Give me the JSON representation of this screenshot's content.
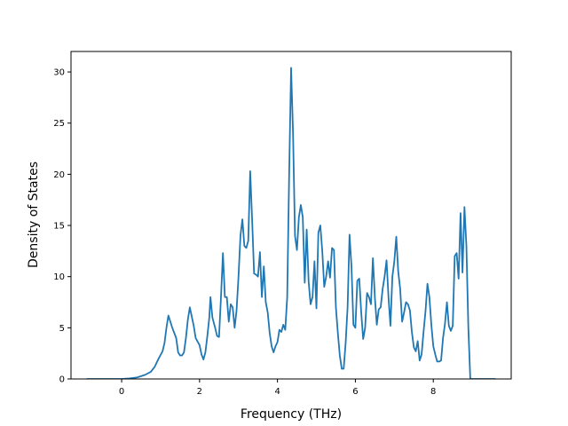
{
  "chart_data": {
    "type": "line",
    "title": "",
    "xlabel": "Frequency (THz)",
    "ylabel": "Density of States",
    "xlim": [
      -1.3,
      10.0
    ],
    "ylim": [
      0,
      32
    ],
    "xticks": [
      0,
      2,
      4,
      6,
      8
    ],
    "yticks": [
      0,
      5,
      10,
      15,
      20,
      25,
      30
    ],
    "grid": false,
    "legend": "none",
    "series": [
      {
        "color": "#1f77b4",
        "points": [
          [
            -0.9,
            0
          ],
          [
            -0.5,
            0
          ],
          [
            0,
            0
          ],
          [
            0.2,
            0.05
          ],
          [
            0.4,
            0.15
          ],
          [
            0.6,
            0.4
          ],
          [
            0.75,
            0.7
          ],
          [
            0.85,
            1.2
          ],
          [
            0.95,
            2.0
          ],
          [
            1.05,
            2.7
          ],
          [
            1.1,
            3.5
          ],
          [
            1.15,
            5.0
          ],
          [
            1.2,
            6.2
          ],
          [
            1.3,
            5.0
          ],
          [
            1.4,
            4.0
          ],
          [
            1.45,
            2.6
          ],
          [
            1.5,
            2.3
          ],
          [
            1.55,
            2.3
          ],
          [
            1.6,
            2.6
          ],
          [
            1.65,
            4.0
          ],
          [
            1.7,
            5.8
          ],
          [
            1.75,
            7.0
          ],
          [
            1.85,
            5.2
          ],
          [
            1.9,
            4.0
          ],
          [
            2.0,
            3.3
          ],
          [
            2.05,
            2.4
          ],
          [
            2.1,
            1.9
          ],
          [
            2.15,
            2.6
          ],
          [
            2.2,
            4.2
          ],
          [
            2.25,
            6.0
          ],
          [
            2.28,
            8.0
          ],
          [
            2.33,
            6.0
          ],
          [
            2.4,
            5.0
          ],
          [
            2.45,
            4.2
          ],
          [
            2.5,
            4.1
          ],
          [
            2.55,
            8.0
          ],
          [
            2.6,
            12.3
          ],
          [
            2.65,
            8.0
          ],
          [
            2.7,
            8.0
          ],
          [
            2.75,
            5.6
          ],
          [
            2.8,
            7.3
          ],
          [
            2.85,
            7.0
          ],
          [
            2.9,
            5.0
          ],
          [
            2.95,
            6.7
          ],
          [
            3.0,
            10.0
          ],
          [
            3.05,
            14.0
          ],
          [
            3.1,
            15.6
          ],
          [
            3.15,
            13.0
          ],
          [
            3.2,
            12.8
          ],
          [
            3.25,
            13.5
          ],
          [
            3.3,
            20.3
          ],
          [
            3.35,
            15.5
          ],
          [
            3.4,
            10.3
          ],
          [
            3.45,
            10.2
          ],
          [
            3.5,
            10.0
          ],
          [
            3.55,
            12.4
          ],
          [
            3.6,
            8.0
          ],
          [
            3.65,
            11.0
          ],
          [
            3.7,
            7.5
          ],
          [
            3.75,
            6.5
          ],
          [
            3.8,
            4.5
          ],
          [
            3.85,
            3.2
          ],
          [
            3.9,
            2.6
          ],
          [
            3.95,
            3.2
          ],
          [
            4.0,
            3.6
          ],
          [
            4.05,
            4.8
          ],
          [
            4.1,
            4.6
          ],
          [
            4.15,
            5.3
          ],
          [
            4.2,
            4.8
          ],
          [
            4.25,
            8.0
          ],
          [
            4.3,
            20.0
          ],
          [
            4.35,
            30.4
          ],
          [
            4.4,
            24.0
          ],
          [
            4.45,
            14.0
          ],
          [
            4.5,
            12.6
          ],
          [
            4.55,
            15.8
          ],
          [
            4.6,
            17.0
          ],
          [
            4.65,
            15.8
          ],
          [
            4.7,
            9.4
          ],
          [
            4.75,
            14.6
          ],
          [
            4.8,
            9.5
          ],
          [
            4.85,
            7.3
          ],
          [
            4.9,
            8.0
          ],
          [
            4.95,
            11.5
          ],
          [
            5.0,
            6.9
          ],
          [
            5.05,
            14.3
          ],
          [
            5.1,
            15.0
          ],
          [
            5.15,
            12.5
          ],
          [
            5.2,
            9.0
          ],
          [
            5.25,
            10.0
          ],
          [
            5.3,
            11.5
          ],
          [
            5.35,
            9.9
          ],
          [
            5.4,
            12.8
          ],
          [
            5.45,
            12.6
          ],
          [
            5.5,
            7.0
          ],
          [
            5.55,
            4.5
          ],
          [
            5.6,
            2.3
          ],
          [
            5.65,
            1.0
          ],
          [
            5.7,
            1.0
          ],
          [
            5.75,
            3.5
          ],
          [
            5.8,
            7.0
          ],
          [
            5.85,
            14.1
          ],
          [
            5.9,
            11.0
          ],
          [
            5.95,
            5.3
          ],
          [
            6.0,
            5.0
          ],
          [
            6.05,
            9.6
          ],
          [
            6.1,
            9.8
          ],
          [
            6.15,
            6.5
          ],
          [
            6.2,
            3.9
          ],
          [
            6.25,
            5.0
          ],
          [
            6.3,
            8.4
          ],
          [
            6.35,
            8.0
          ],
          [
            6.4,
            7.3
          ],
          [
            6.45,
            11.8
          ],
          [
            6.5,
            8.0
          ],
          [
            6.55,
            5.3
          ],
          [
            6.6,
            6.8
          ],
          [
            6.65,
            7.0
          ],
          [
            6.7,
            8.8
          ],
          [
            6.75,
            10.0
          ],
          [
            6.8,
            11.6
          ],
          [
            6.85,
            8.0
          ],
          [
            6.9,
            5.2
          ],
          [
            6.95,
            10.0
          ],
          [
            7.0,
            11.5
          ],
          [
            7.05,
            13.9
          ],
          [
            7.1,
            10.5
          ],
          [
            7.15,
            8.8
          ],
          [
            7.2,
            5.6
          ],
          [
            7.25,
            6.5
          ],
          [
            7.3,
            7.5
          ],
          [
            7.35,
            7.3
          ],
          [
            7.4,
            6.7
          ],
          [
            7.45,
            4.6
          ],
          [
            7.5,
            3.1
          ],
          [
            7.55,
            2.7
          ],
          [
            7.6,
            3.7
          ],
          [
            7.65,
            1.8
          ],
          [
            7.7,
            2.4
          ],
          [
            7.75,
            4.6
          ],
          [
            7.8,
            6.6
          ],
          [
            7.85,
            9.3
          ],
          [
            7.9,
            8.0
          ],
          [
            7.95,
            5.3
          ],
          [
            8.0,
            3.2
          ],
          [
            8.05,
            2.4
          ],
          [
            8.1,
            1.7
          ],
          [
            8.15,
            1.7
          ],
          [
            8.2,
            1.8
          ],
          [
            8.25,
            4.0
          ],
          [
            8.3,
            5.4
          ],
          [
            8.35,
            7.5
          ],
          [
            8.4,
            5.2
          ],
          [
            8.45,
            4.7
          ],
          [
            8.5,
            5.2
          ],
          [
            8.55,
            12.0
          ],
          [
            8.6,
            12.3
          ],
          [
            8.65,
            9.8
          ],
          [
            8.7,
            16.2
          ],
          [
            8.75,
            10.4
          ],
          [
            8.8,
            16.8
          ],
          [
            8.85,
            13.0
          ],
          [
            8.9,
            5.0
          ],
          [
            8.95,
            0
          ],
          [
            9.0,
            0
          ],
          [
            9.5,
            0
          ],
          [
            9.6,
            0
          ]
        ]
      }
    ]
  }
}
